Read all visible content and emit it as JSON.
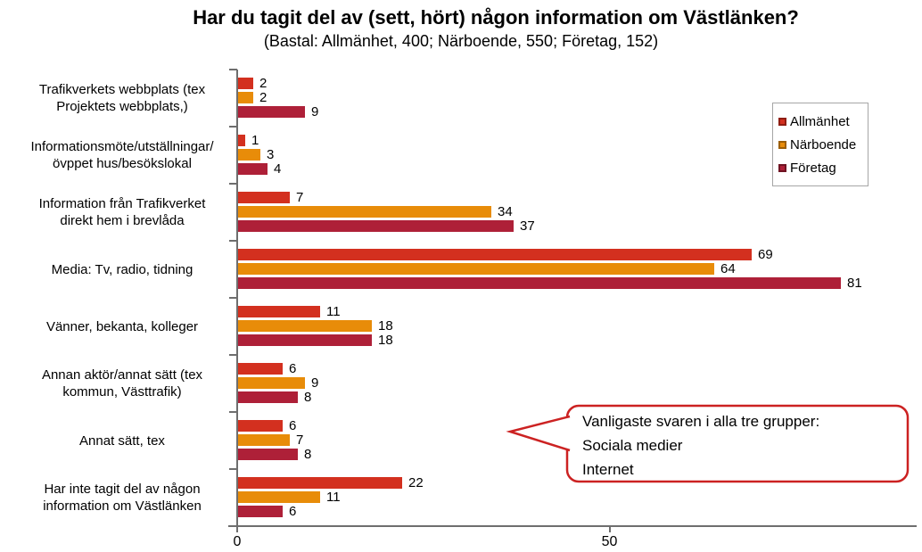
{
  "title": "Har du tagit del av (sett, hört) någon information om Västlänken?",
  "subtitle": "(Bastal: Allmänhet, 400; Närboende, 550; Företag, 152)",
  "chart_data": {
    "type": "bar",
    "orientation": "horizontal",
    "title": "Har du tagit del av (sett, hört) någon information om Västlänken?",
    "subtitle": "(Bastal: Allmänhet, 400; Närboende, 550; Företag, 152)",
    "categories": [
      "Trafikverkets webbplats (tex\nProjektets webbplats,)",
      "Informationsmöte/utställningar/\növppet hus/besökslokal",
      "Information från Trafikverket\ndirekt hem i brevlåda",
      "Media: Tv, radio, tidning",
      "Vänner, bekanta, kolleger",
      "Annan aktör/annat sätt (tex\nkommun, Västtrafik)",
      "Annat sätt, tex",
      "Har inte tagit del av någon\ninformation om Västlänken"
    ],
    "series": [
      {
        "name": "Allmänhet",
        "color": "#D3301F",
        "border_color": "#8F1D12",
        "values": [
          2,
          1,
          7,
          69,
          11,
          6,
          6,
          22
        ]
      },
      {
        "name": "Närboende",
        "color": "#E88C09",
        "border_color": "#9C5E05",
        "values": [
          2,
          3,
          34,
          64,
          18,
          9,
          7,
          11
        ]
      },
      {
        "name": "Företag",
        "color": "#AE2038",
        "border_color": "#6F1322",
        "values": [
          9,
          4,
          37,
          81,
          18,
          8,
          8,
          6
        ]
      }
    ],
    "x_ticks": [
      0,
      50
    ],
    "xlim": [
      0,
      91
    ],
    "grid": false,
    "legend_position": "upper-right",
    "value_labels": true,
    "axis_color": "#6E6E6E"
  },
  "callout": {
    "lines": [
      "Vanligaste svaren i alla tre grupper:",
      "Sociala medier",
      "Internet"
    ],
    "border_color": "#CC2222"
  }
}
